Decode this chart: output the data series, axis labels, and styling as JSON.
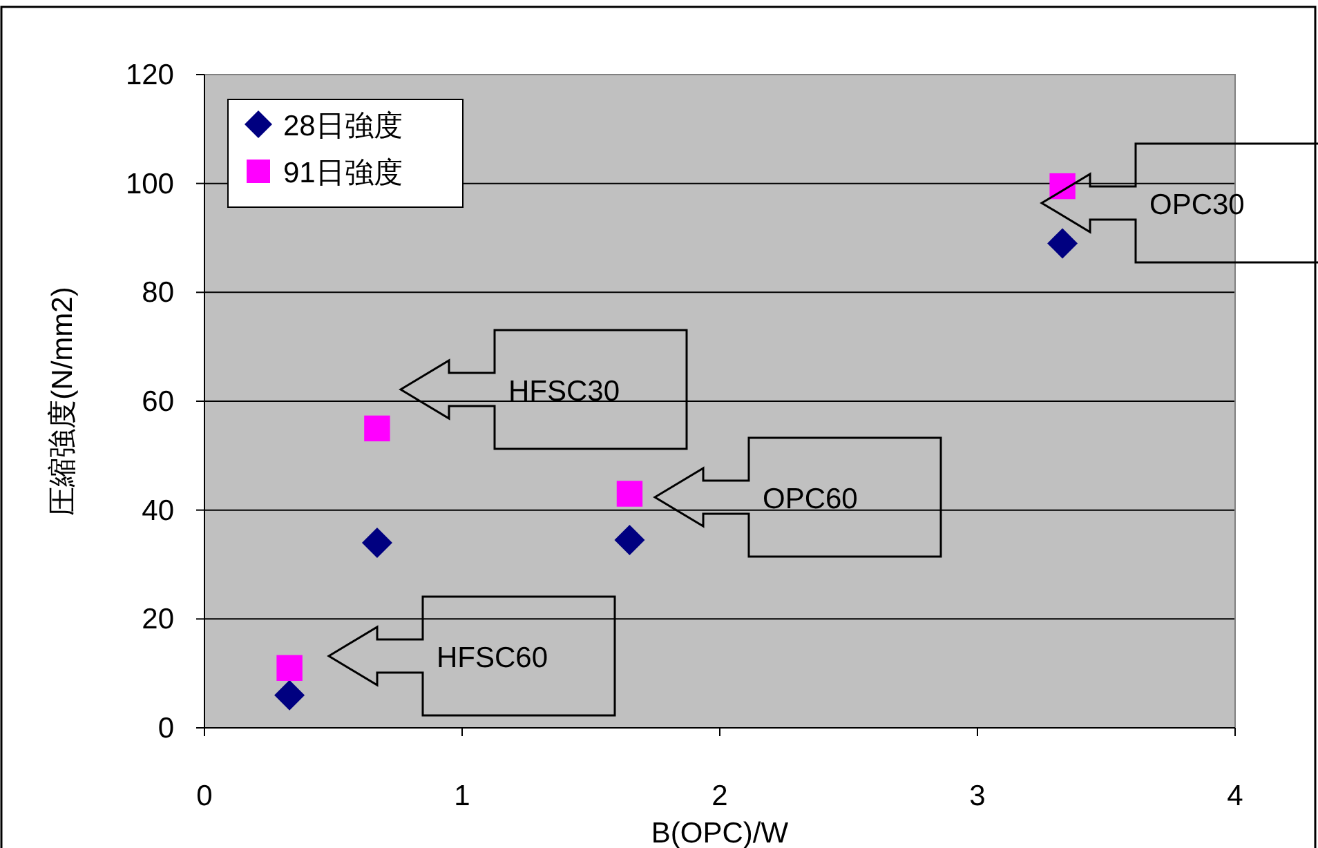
{
  "chart_data": {
    "type": "scatter",
    "xlabel": "B(OPC)/W",
    "ylabel": "圧縮強度(N/mm2)",
    "xlim": [
      0,
      4
    ],
    "ylim": [
      0,
      120
    ],
    "xticks": [
      0,
      1,
      2,
      3,
      4
    ],
    "yticks": [
      0,
      20,
      40,
      60,
      80,
      100,
      120
    ],
    "grid": "y",
    "legend": "top left",
    "series": [
      {
        "name": "28日強度",
        "color": "#000080",
        "marker": "diamond",
        "x": [
          0.33,
          0.67,
          1.65,
          3.33
        ],
        "values": [
          6,
          34,
          34.5,
          89
        ]
      },
      {
        "name": "91日強度",
        "color": "#ff00ff",
        "marker": "square",
        "x": [
          0.33,
          0.67,
          1.65,
          3.33
        ],
        "values": [
          11,
          55,
          43,
          99.5
        ]
      }
    ],
    "annotations": [
      "HFSC30",
      "OPC60",
      "OPC30",
      "HFSC60"
    ]
  }
}
